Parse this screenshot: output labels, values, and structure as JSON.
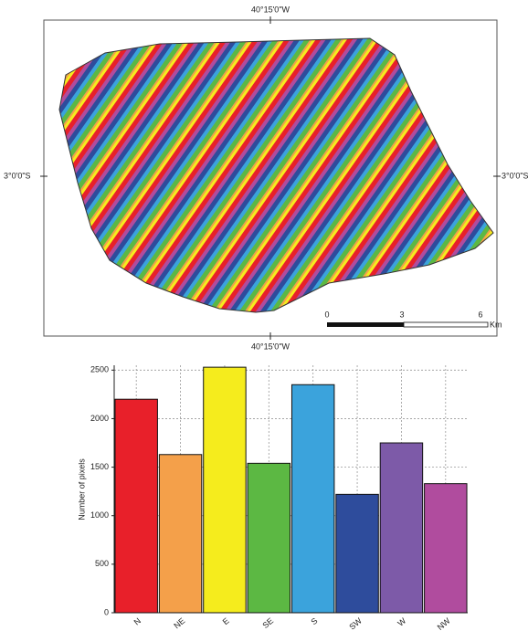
{
  "map": {
    "top_label": "40°15'0\"W",
    "bottom_label": "40°15'0\"W",
    "left_label": "3°0'0\"S",
    "right_label": "3°0'0\"S",
    "scale": {
      "start": "0",
      "mid": "3",
      "end": "6",
      "unit": "Km"
    }
  },
  "chart_data": {
    "type": "bar",
    "y_label": "Number of pixels",
    "categories": [
      "N",
      "NE",
      "E",
      "SE",
      "S",
      "SW",
      "W",
      "NW"
    ],
    "values": [
      2200,
      1630,
      2530,
      1540,
      2350,
      1220,
      1750,
      1330
    ],
    "colors": [
      "#e8202a",
      "#f4a04a",
      "#f5ec1d",
      "#5cb843",
      "#3ba3dc",
      "#2e4c9c",
      "#7d5aa8",
      "#b04c9e"
    ],
    "ylim": [
      0,
      2550
    ],
    "yticks": [
      0,
      500,
      1000,
      1500,
      2000,
      2500
    ],
    "grid": true
  }
}
